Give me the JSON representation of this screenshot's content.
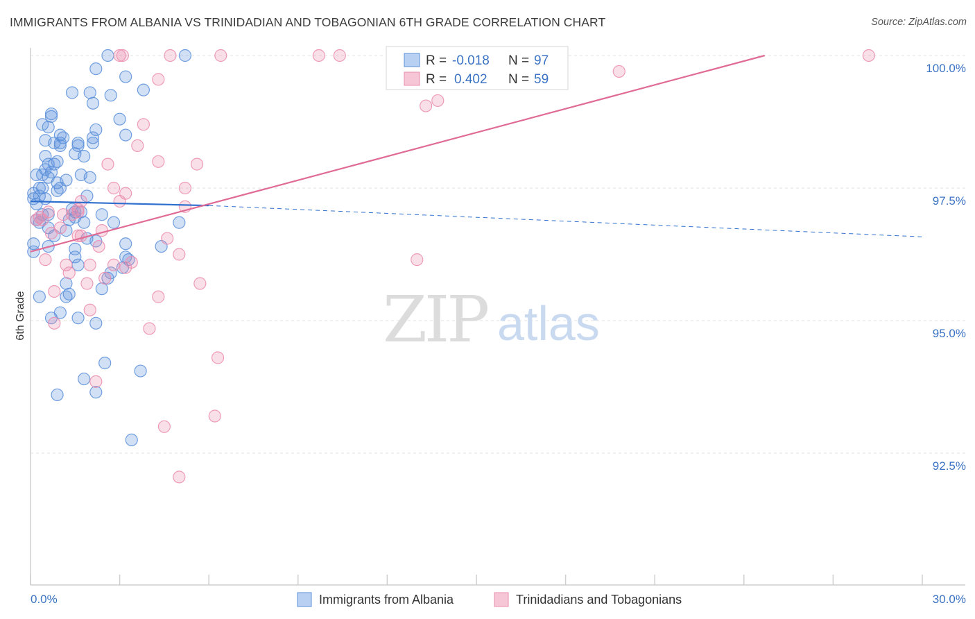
{
  "header": {
    "title": "IMMIGRANTS FROM ALBANIA VS TRINIDADIAN AND TOBAGONIAN 6TH GRADE CORRELATION CHART",
    "source": "Source: ZipAtlas.com"
  },
  "watermark": {
    "zip": "ZIP",
    "atlas": "atlas"
  },
  "legend_box": {
    "rows": [
      {
        "r_label": "R =",
        "r_value": "-0.018",
        "n_label": "N =",
        "n_value": "97"
      },
      {
        "r_label": "R =",
        "r_value": "0.402",
        "n_label": "N =",
        "n_value": "59"
      }
    ]
  },
  "chart_data": {
    "type": "scatter",
    "title": "IMMIGRANTS FROM ALBANIA VS TRINIDADIAN AND TOBAGONIAN 6TH GRADE CORRELATION CHART",
    "xlabel": "",
    "ylabel": "6th Grade",
    "xlim": [
      0,
      30
    ],
    "ylim": [
      90.5,
      100.4
    ],
    "x_tick_labels": [
      "0.0%",
      "30.0%"
    ],
    "y_ticks": [
      92.5,
      95.0,
      97.5,
      100.0
    ],
    "y_tick_labels": [
      "92.5%",
      "95.0%",
      "97.5%",
      "100.0%"
    ],
    "grid": true,
    "legend_position": "bottom",
    "colors": {
      "albania": "#5b8fdb",
      "trinidad": "#eb8cae",
      "albania_line": "#2f6fce",
      "trinidad_line": "#e06b95"
    },
    "series": [
      {
        "name": "Immigrants from Albania",
        "r": -0.018,
        "n": 97,
        "trend": {
          "x": [
            0,
            6.0,
            30.0
          ],
          "y": [
            97.25,
            97.17,
            96.58
          ],
          "solid_until": 6.0
        },
        "points": [
          [
            2.6,
            100.0
          ],
          [
            5.2,
            100.0
          ],
          [
            2.2,
            99.75
          ],
          [
            3.2,
            99.6
          ],
          [
            3.8,
            99.35
          ],
          [
            1.4,
            99.3
          ],
          [
            2.0,
            99.3
          ],
          [
            2.7,
            99.25
          ],
          [
            2.1,
            99.1
          ],
          [
            0.7,
            98.9
          ],
          [
            0.7,
            98.85
          ],
          [
            3.0,
            98.8
          ],
          [
            0.4,
            98.7
          ],
          [
            0.6,
            98.65
          ],
          [
            2.2,
            98.6
          ],
          [
            3.2,
            98.5
          ],
          [
            1.0,
            98.5
          ],
          [
            1.1,
            98.45
          ],
          [
            2.1,
            98.45
          ],
          [
            0.5,
            98.4
          ],
          [
            0.8,
            98.35
          ],
          [
            1.0,
            98.35
          ],
          [
            1.6,
            98.35
          ],
          [
            2.1,
            98.35
          ],
          [
            1.0,
            98.3
          ],
          [
            1.6,
            98.3
          ],
          [
            0.5,
            98.1
          ],
          [
            1.5,
            98.15
          ],
          [
            1.8,
            98.1
          ],
          [
            0.9,
            98.0
          ],
          [
            0.6,
            97.95
          ],
          [
            0.8,
            97.95
          ],
          [
            0.5,
            97.85
          ],
          [
            0.7,
            97.8
          ],
          [
            0.2,
            97.75
          ],
          [
            0.4,
            97.75
          ],
          [
            1.7,
            97.75
          ],
          [
            2.0,
            97.7
          ],
          [
            0.6,
            97.7
          ],
          [
            1.2,
            97.65
          ],
          [
            0.9,
            97.6
          ],
          [
            0.3,
            97.5
          ],
          [
            0.4,
            97.5
          ],
          [
            1.0,
            97.5
          ],
          [
            0.9,
            97.45
          ],
          [
            0.1,
            97.4
          ],
          [
            0.3,
            97.35
          ],
          [
            0.5,
            97.3
          ],
          [
            1.9,
            97.35
          ],
          [
            1.4,
            97.1
          ],
          [
            1.5,
            97.05
          ],
          [
            0.6,
            97.0
          ],
          [
            1.7,
            97.05
          ],
          [
            1.5,
            96.95
          ],
          [
            0.2,
            96.9
          ],
          [
            0.3,
            96.85
          ],
          [
            1.8,
            96.85
          ],
          [
            2.8,
            96.85
          ],
          [
            5.0,
            96.85
          ],
          [
            0.6,
            96.75
          ],
          [
            1.2,
            96.7
          ],
          [
            1.9,
            96.55
          ],
          [
            2.2,
            96.5
          ],
          [
            3.2,
            96.45
          ],
          [
            0.1,
            96.45
          ],
          [
            0.6,
            96.4
          ],
          [
            4.4,
            96.4
          ],
          [
            1.5,
            96.35
          ],
          [
            0.1,
            96.3
          ],
          [
            3.2,
            96.2
          ],
          [
            3.3,
            96.15
          ],
          [
            1.6,
            96.05
          ],
          [
            3.1,
            96.0
          ],
          [
            2.6,
            95.8
          ],
          [
            1.2,
            95.7
          ],
          [
            2.4,
            95.6
          ],
          [
            1.3,
            95.5
          ],
          [
            1.2,
            95.45
          ],
          [
            0.3,
            95.45
          ],
          [
            1.0,
            95.15
          ],
          [
            0.7,
            95.05
          ],
          [
            1.6,
            95.05
          ],
          [
            2.2,
            94.95
          ],
          [
            2.5,
            94.2
          ],
          [
            3.7,
            94.05
          ],
          [
            1.8,
            93.9
          ],
          [
            0.9,
            93.6
          ],
          [
            2.2,
            93.65
          ],
          [
            3.4,
            92.75
          ],
          [
            0.1,
            97.3
          ],
          [
            0.2,
            97.2
          ],
          [
            0.4,
            97.0
          ],
          [
            1.3,
            96.9
          ],
          [
            2.4,
            97.0
          ],
          [
            0.8,
            96.6
          ],
          [
            1.5,
            96.2
          ],
          [
            2.7,
            95.9
          ]
        ]
      },
      {
        "name": "Trinidadians and Tobagonians",
        "r": 0.402,
        "n": 59,
        "trend": {
          "x": [
            0,
            24.7
          ],
          "y": [
            96.3,
            100.0
          ]
        },
        "points": [
          [
            3.0,
            100.0
          ],
          [
            4.7,
            100.0
          ],
          [
            6.4,
            100.0
          ],
          [
            9.7,
            100.0
          ],
          [
            10.4,
            100.0
          ],
          [
            28.2,
            100.0
          ],
          [
            3.1,
            100.0
          ],
          [
            19.8,
            99.7
          ],
          [
            4.3,
            99.55
          ],
          [
            13.7,
            99.15
          ],
          [
            13.3,
            99.05
          ],
          [
            3.8,
            98.7
          ],
          [
            3.6,
            98.3
          ],
          [
            4.3,
            98.0
          ],
          [
            5.6,
            97.95
          ],
          [
            2.6,
            97.95
          ],
          [
            5.2,
            97.5
          ],
          [
            2.8,
            97.5
          ],
          [
            3.2,
            97.4
          ],
          [
            3.0,
            97.25
          ],
          [
            1.7,
            97.25
          ],
          [
            5.2,
            97.15
          ],
          [
            1.6,
            97.1
          ],
          [
            0.6,
            97.05
          ],
          [
            1.4,
            97.0
          ],
          [
            0.3,
            96.95
          ],
          [
            0.4,
            96.9
          ],
          [
            1.0,
            96.75
          ],
          [
            2.4,
            96.7
          ],
          [
            1.7,
            96.6
          ],
          [
            0.7,
            96.65
          ],
          [
            4.6,
            96.55
          ],
          [
            1.6,
            96.6
          ],
          [
            2.3,
            96.4
          ],
          [
            5.0,
            96.25
          ],
          [
            13.0,
            96.15
          ],
          [
            0.5,
            96.15
          ],
          [
            3.4,
            96.1
          ],
          [
            1.2,
            96.05
          ],
          [
            2.0,
            96.05
          ],
          [
            2.8,
            96.05
          ],
          [
            3.2,
            96.0
          ],
          [
            1.3,
            95.9
          ],
          [
            2.5,
            95.8
          ],
          [
            5.7,
            95.7
          ],
          [
            1.9,
            95.7
          ],
          [
            0.8,
            95.55
          ],
          [
            4.3,
            95.45
          ],
          [
            2.0,
            95.2
          ],
          [
            0.8,
            94.95
          ],
          [
            4.0,
            94.85
          ],
          [
            6.3,
            94.3
          ],
          [
            2.2,
            93.85
          ],
          [
            6.2,
            93.2
          ],
          [
            4.5,
            93.0
          ],
          [
            5.0,
            92.05
          ],
          [
            0.2,
            96.9
          ],
          [
            1.6,
            97.05
          ],
          [
            1.1,
            97.0
          ]
        ]
      }
    ]
  }
}
